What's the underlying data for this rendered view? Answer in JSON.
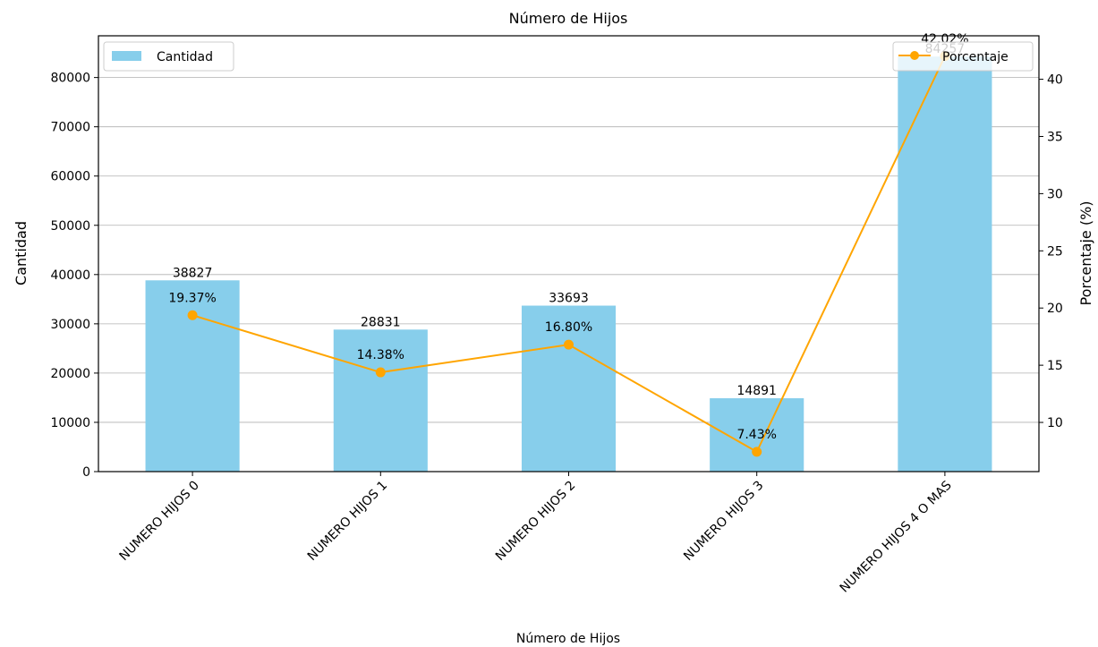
{
  "chart_data": {
    "type": "bar",
    "title": "Número de Hijos",
    "xlabel": "Número de Hijos",
    "ylabel": "Cantidad",
    "y2label": "Porcentaje (%)",
    "categories": [
      "NUMERO HIJOS 0",
      "NUMERO HIJOS 1",
      "NUMERO HIJOS 2",
      "NUMERO HIJOS 3",
      "NUMERO HIJOS 4 O MAS"
    ],
    "series": [
      {
        "name": "Cantidad",
        "type": "bar",
        "axis": "left",
        "color": "#87ceeb",
        "values": [
          38827,
          28831,
          33693,
          14891,
          84257
        ],
        "labels": [
          "38827",
          "28831",
          "33693",
          "14891",
          "84257"
        ]
      },
      {
        "name": "Porcentaje",
        "type": "line",
        "axis": "right",
        "color": "#ffa500",
        "values": [
          19.37,
          14.38,
          16.8,
          7.43,
          42.02
        ],
        "labels": [
          "19.37%",
          "14.38%",
          "16.80%",
          "7.43%",
          "42.02%"
        ]
      }
    ],
    "ylim": [
      0,
      88470
    ],
    "y2lim": [
      5.7,
      43.8
    ],
    "yticks": [
      "0",
      "10000",
      "20000",
      "30000",
      "40000",
      "50000",
      "60000",
      "70000",
      "80000"
    ],
    "y2ticks": [
      "10",
      "15",
      "20",
      "25",
      "30",
      "35",
      "40"
    ],
    "grid": "y",
    "legend_bar_position": "top-left",
    "legend_line_position": "top-right"
  }
}
